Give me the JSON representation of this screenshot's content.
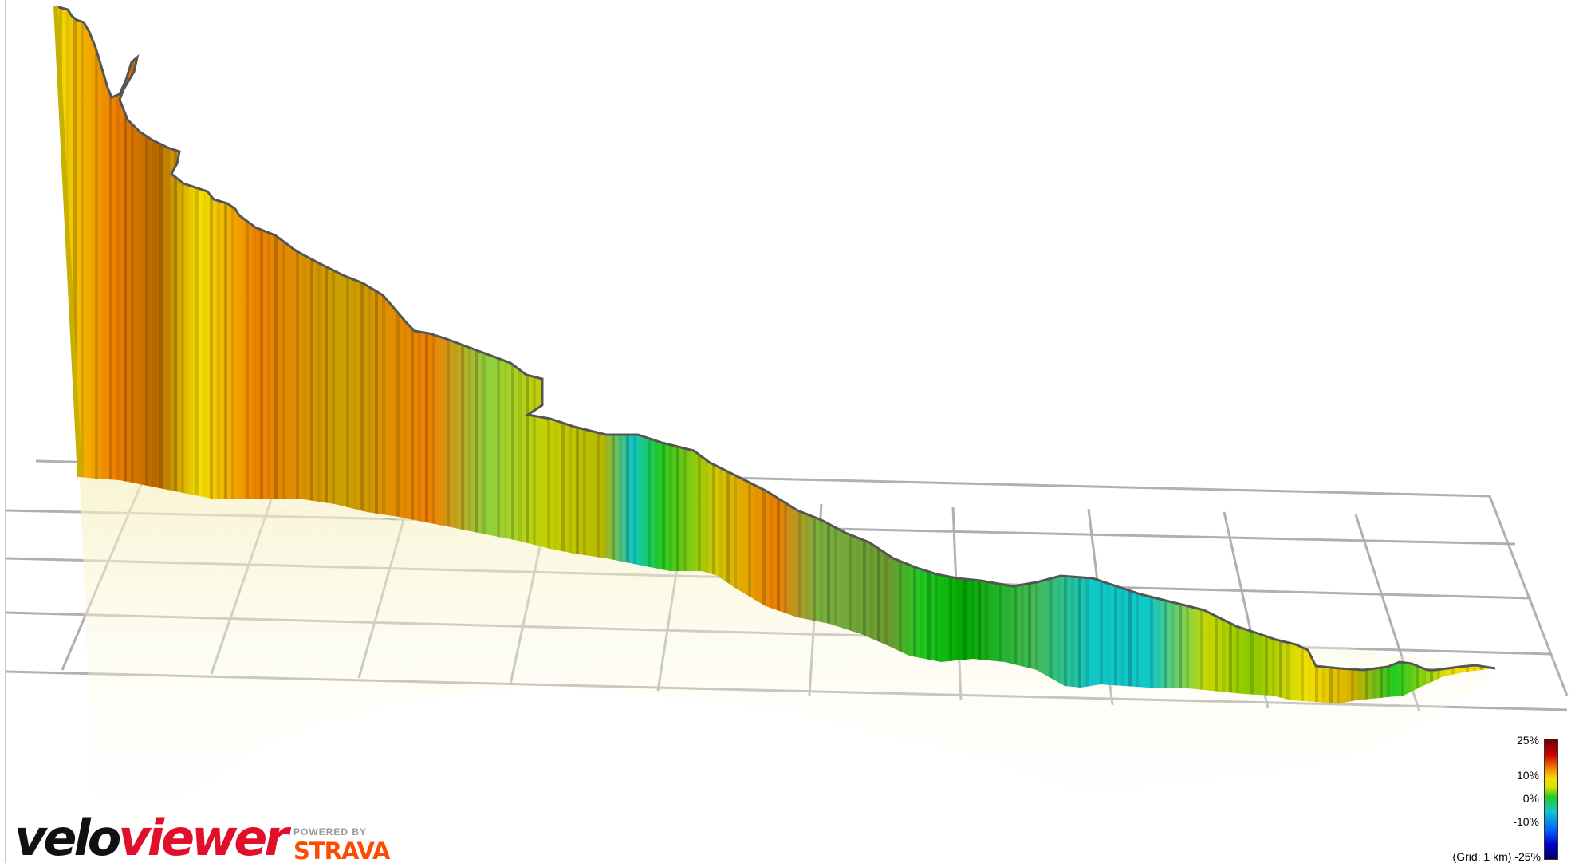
{
  "branding": {
    "logo_part1": "velo",
    "logo_part2": "viewer",
    "powered_by": "POWERED BY",
    "strava": "STRAVA"
  },
  "legend": {
    "labels": [
      "25%",
      "10%",
      "0%",
      "-10%",
      "-25%"
    ],
    "grid_note": "(Grid: 1 km)"
  },
  "colors": {
    "steep_red": "#d00000",
    "orange": "#f08000",
    "yellow": "#f3e000",
    "green": "#22cc22",
    "cyan": "#11c8c8",
    "blue": "#0000cc",
    "grid": "#b0b0b0",
    "profile_edge": "#555555",
    "strava": "#fc4c02",
    "viewer_red": "#e0102a"
  }
}
